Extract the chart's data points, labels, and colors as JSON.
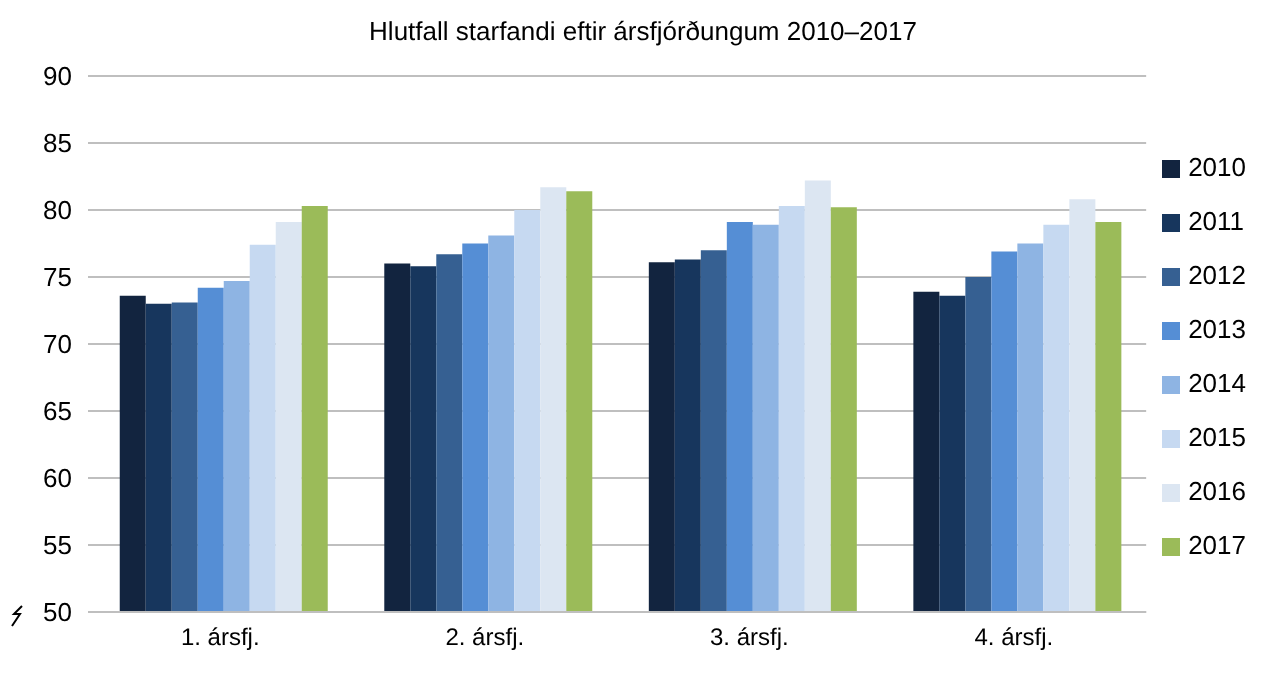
{
  "chart_data": {
    "type": "bar",
    "title": "Hlutfall starfandi eftir ársfjórðungum 2010–2017",
    "categories": [
      "1. ársfj.",
      "2. ársfj.",
      "3. ársfj.",
      "4. ársfj."
    ],
    "series": [
      {
        "name": "2010",
        "color": "#12243f",
        "values": [
          73.6,
          76.0,
          76.1,
          73.9
        ]
      },
      {
        "name": "2011",
        "color": "#17365d",
        "values": [
          73.0,
          75.8,
          76.3,
          73.6
        ]
      },
      {
        "name": "2012",
        "color": "#366092",
        "values": [
          73.1,
          76.7,
          77.0,
          75.0
        ]
      },
      {
        "name": "2013",
        "color": "#558ed5",
        "values": [
          74.2,
          77.5,
          79.1,
          76.9
        ]
      },
      {
        "name": "2014",
        "color": "#8eb4e3",
        "values": [
          74.7,
          78.1,
          78.9,
          77.5
        ]
      },
      {
        "name": "2015",
        "color": "#c6d9f1",
        "values": [
          77.4,
          80.0,
          80.3,
          78.9
        ]
      },
      {
        "name": "2016",
        "color": "#dce6f2",
        "values": [
          79.1,
          81.7,
          82.2,
          80.8
        ]
      },
      {
        "name": "2017",
        "color": "#9bbb59",
        "values": [
          80.3,
          81.4,
          80.2,
          79.1
        ]
      }
    ],
    "ylim": [
      50,
      90
    ],
    "yticks": [
      50,
      55,
      60,
      65,
      70,
      75,
      80,
      85,
      90
    ],
    "grid": "y",
    "legend": "right"
  }
}
